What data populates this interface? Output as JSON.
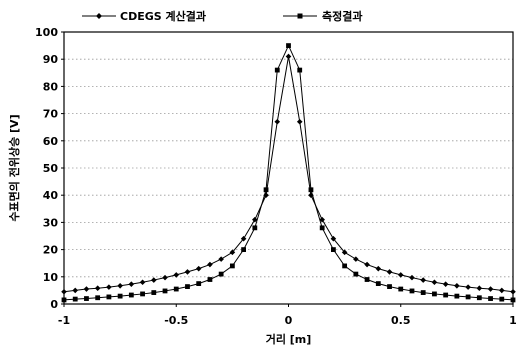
{
  "chart_data": {
    "type": "line",
    "title": "",
    "xlabel": "거리 [m]",
    "ylabel": "수표면의 전위상승 [V]",
    "xlim": [
      -1,
      1
    ],
    "ylim": [
      0,
      100
    ],
    "x_ticks": [
      "-1",
      "-0.5",
      "0",
      "0.5",
      "1"
    ],
    "y_ticks": [
      "0",
      "10",
      "20",
      "30",
      "40",
      "50",
      "60",
      "70",
      "80",
      "90",
      "100"
    ],
    "grid": true,
    "legend_position": "top",
    "series": [
      {
        "name": "CDEGS 계산결과",
        "marker": "diamond",
        "color": "#000000",
        "x": [
          -1,
          -0.95,
          -0.9,
          -0.85,
          -0.8,
          -0.75,
          -0.7,
          -0.65,
          -0.6,
          -0.55,
          -0.5,
          -0.45,
          -0.4,
          -0.35,
          -0.3,
          -0.25,
          -0.2,
          -0.15,
          -0.1,
          -0.05,
          0,
          0.05,
          0.1,
          0.15,
          0.2,
          0.25,
          0.3,
          0.35,
          0.4,
          0.45,
          0.5,
          0.55,
          0.6,
          0.65,
          0.7,
          0.75,
          0.8,
          0.85,
          0.9,
          0.95,
          1
        ],
        "y": [
          4.5,
          5,
          5.5,
          5.8,
          6.2,
          6.7,
          7.3,
          8,
          8.8,
          9.7,
          10.7,
          11.8,
          13,
          14.5,
          16.5,
          19,
          24,
          31,
          40,
          67,
          91,
          67,
          40,
          31,
          24,
          19,
          16.5,
          14.5,
          13,
          11.8,
          10.7,
          9.7,
          8.8,
          8,
          7.3,
          6.7,
          6.2,
          5.8,
          5.5,
          5,
          4.5
        ]
      },
      {
        "name": "측정결과",
        "marker": "square",
        "color": "#000000",
        "x": [
          -1,
          -0.95,
          -0.9,
          -0.85,
          -0.8,
          -0.75,
          -0.7,
          -0.65,
          -0.6,
          -0.55,
          -0.5,
          -0.45,
          -0.4,
          -0.35,
          -0.3,
          -0.25,
          -0.2,
          -0.15,
          -0.1,
          -0.05,
          0,
          0.05,
          0.1,
          0.15,
          0.2,
          0.25,
          0.3,
          0.35,
          0.4,
          0.45,
          0.5,
          0.55,
          0.6,
          0.65,
          0.7,
          0.75,
          0.8,
          0.85,
          0.9,
          0.95,
          1
        ],
        "y": [
          1.5,
          1.8,
          2,
          2.3,
          2.6,
          2.9,
          3.3,
          3.7,
          4.2,
          4.8,
          5.5,
          6.4,
          7.5,
          9,
          11,
          14,
          20,
          28,
          42,
          86,
          95,
          86,
          42,
          28,
          20,
          14,
          11,
          9,
          7.5,
          6.4,
          5.5,
          4.8,
          4.2,
          3.7,
          3.3,
          2.9,
          2.6,
          2.3,
          2,
          1.8,
          1.5
        ]
      }
    ]
  }
}
